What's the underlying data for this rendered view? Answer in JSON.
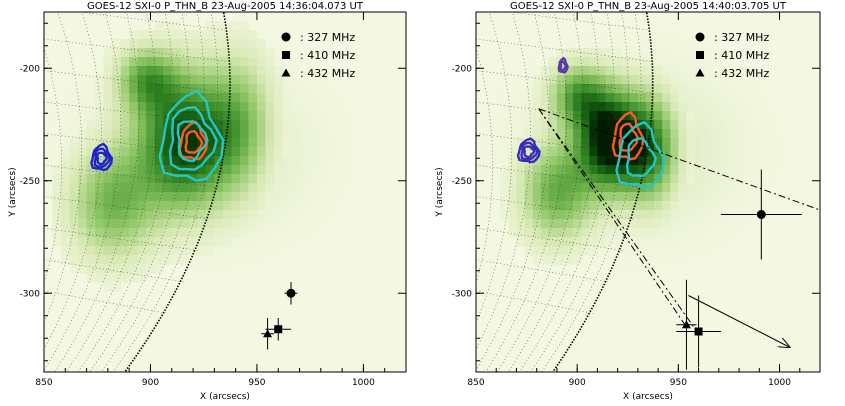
{
  "chart_data": [
    {
      "type": "scatter",
      "title": "GOES-12 SXI-0 P_THN_B 23-Aug-2005 14:36:04.073 UT",
      "xlabel": "X (arcsecs)",
      "ylabel": "Y (arcsecs)",
      "xlim": [
        850,
        1020
      ],
      "ylim": [
        -335,
        -175
      ],
      "xticks": [
        850,
        900,
        950,
        1000
      ],
      "yticks": [
        -200,
        -250,
        -300
      ],
      "background": "SXI soft X-ray image, green colour table",
      "legend": {
        "placement": "top-right",
        "entries": [
          {
            "marker": "circle",
            "label": ": 327 MHz"
          },
          {
            "marker": "square",
            "label": ": 410 MHz"
          },
          {
            "marker": "triangle",
            "label": ": 432 MHz"
          }
        ]
      },
      "series": [
        {
          "name": "327 MHz",
          "marker": "circle",
          "x": 966,
          "y": -300,
          "xerr": 3,
          "yerr": 5
        },
        {
          "name": "410 MHz",
          "marker": "square",
          "x": 960,
          "y": -316,
          "xerr": 6,
          "yerr": 5
        },
        {
          "name": "432 MHz",
          "marker": "triangle",
          "x": 955,
          "y": -318,
          "xerr": 3,
          "yerr": 7
        }
      ],
      "contours": [
        {
          "color": "#2222cc",
          "center": [
            877,
            -240
          ],
          "rx": 4.5,
          "ry": 5.5,
          "levels": 3
        },
        {
          "color": "#ff5a1e",
          "center": [
            920,
            -233
          ],
          "rx": 6,
          "ry": 8,
          "levels": 2
        },
        {
          "color": "#26c4c4",
          "center": [
            919,
            -232
          ],
          "rx": 14,
          "ry": 19,
          "levels": 3
        }
      ]
    },
    {
      "type": "scatter",
      "title": "GOES-12 SXI-0 P_THN_B 23-Aug-2005 14:40:03.705 UT",
      "xlabel": "X (arcsecs)",
      "ylabel": "Y (arcsecs)",
      "xlim": [
        850,
        1020
      ],
      "ylim": [
        -335,
        -175
      ],
      "xticks": [
        850,
        900,
        950,
        1000
      ],
      "yticks": [
        -200,
        -250,
        -300
      ],
      "background": "SXI soft X-ray image, green colour table",
      "legend": {
        "placement": "top-right",
        "entries": [
          {
            "marker": "circle",
            "label": ": 327 MHz"
          },
          {
            "marker": "square",
            "label": ": 410 MHz"
          },
          {
            "marker": "triangle",
            "label": ": 432 MHz"
          }
        ]
      },
      "series": [
        {
          "name": "327 MHz",
          "marker": "circle",
          "x": 991,
          "y": -265,
          "xerr": 20,
          "yerr": 20
        },
        {
          "name": "410 MHz",
          "marker": "square",
          "x": 960,
          "y": -317,
          "xerr": 11,
          "yerr": 16
        },
        {
          "name": "432 MHz",
          "marker": "triangle",
          "x": 954,
          "y": -314,
          "xerr": 5,
          "yerr": 20
        }
      ],
      "lines": [
        {
          "style": "dash-dot",
          "from": [
            881,
            -218
          ],
          "to": [
            1020,
            -263
          ]
        },
        {
          "style": "dash-dot",
          "from": [
            881,
            -218
          ],
          "to": [
            960,
            -318
          ]
        },
        {
          "style": "dash-dot",
          "from": [
            881,
            -218
          ],
          "to": [
            954,
            -315
          ]
        }
      ],
      "arrow": {
        "from": [
          955,
          -301
        ],
        "to": [
          1005,
          -324
        ]
      },
      "contours": [
        {
          "color": "#5a3ca8",
          "center": [
            893,
            -199
          ],
          "rx": 2,
          "ry": 3,
          "levels": 2
        },
        {
          "color": "#3a2cb8",
          "center": [
            876,
            -237
          ],
          "rx": 5,
          "ry": 5,
          "levels": 3
        },
        {
          "color": "#ff5a1e",
          "center": [
            925,
            -231
          ],
          "rx": 7,
          "ry": 10,
          "levels": 2
        },
        {
          "color": "#26c4c4",
          "center": [
            931,
            -240
          ],
          "rx": 11,
          "ry": 14,
          "levels": 2
        }
      ]
    }
  ]
}
